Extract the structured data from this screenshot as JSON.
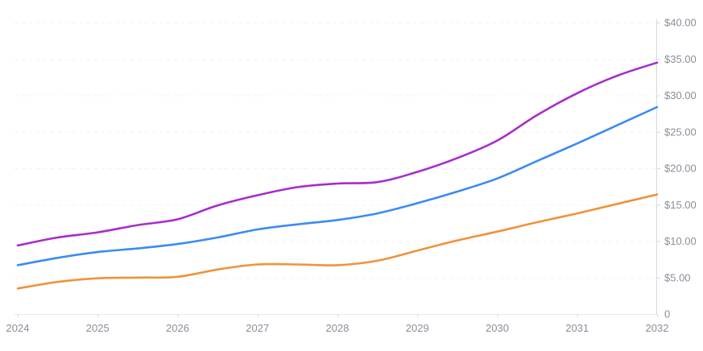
{
  "chart_data": {
    "type": "line",
    "title": "",
    "xlabel": "",
    "ylabel": "",
    "legend": "none",
    "grid": "horizontal-dashed",
    "axis_labels_position": {
      "y": "right",
      "x": "bottom"
    },
    "xlim": [
      2024,
      2032
    ],
    "ylim": [
      0,
      40
    ],
    "x_tick_labels": [
      "2024",
      "2025",
      "2026",
      "2027",
      "2028",
      "2029",
      "2030",
      "2031",
      "2032"
    ],
    "x_tick_values": [
      2024,
      2025,
      2026,
      2027,
      2028,
      2029,
      2030,
      2031,
      2032
    ],
    "y_tick_labels": [
      "0",
      "$5.00",
      "$10.00",
      "$15.00",
      "$20.00",
      "$25.00",
      "$30.00",
      "$35.00",
      "$40.00"
    ],
    "y_tick_values": [
      0,
      5,
      10,
      15,
      20,
      25,
      30,
      35,
      40
    ],
    "x": [
      2024,
      2024.5,
      2025,
      2025.5,
      2026,
      2026.5,
      2027,
      2027.5,
      2028,
      2028.5,
      2029,
      2029.5,
      2030,
      2030.5,
      2031,
      2031.5,
      2032
    ],
    "series": [
      {
        "name": "purple-line-high-forecast",
        "color": "#a82cc9",
        "values": [
          9.4,
          10.5,
          11.2,
          12.2,
          13.0,
          14.9,
          16.3,
          17.4,
          17.9,
          18.1,
          19.5,
          21.4,
          23.8,
          27.3,
          30.3,
          32.7,
          34.5
        ]
      },
      {
        "name": "blue-line-mid-forecast",
        "color": "#3b8bf2",
        "values": [
          6.7,
          7.7,
          8.5,
          9.0,
          9.6,
          10.5,
          11.6,
          12.3,
          12.9,
          13.8,
          15.2,
          16.8,
          18.6,
          21.0,
          23.4,
          25.9,
          28.4
        ]
      },
      {
        "name": "orange-line-low-forecast",
        "color": "#f0923b",
        "values": [
          3.5,
          4.4,
          4.9,
          5.0,
          5.1,
          6.1,
          6.8,
          6.8,
          6.7,
          7.3,
          8.7,
          10.1,
          11.3,
          12.6,
          13.8,
          15.1,
          16.4
        ]
      }
    ]
  },
  "colors": {
    "background": "#ffffff",
    "gridline": "#f2f2f5",
    "axis_line": "#d7d9dd",
    "baseline": "#e8e9ec",
    "tick_mark": "#d7d9dd",
    "tick_label": "#898e98"
  }
}
